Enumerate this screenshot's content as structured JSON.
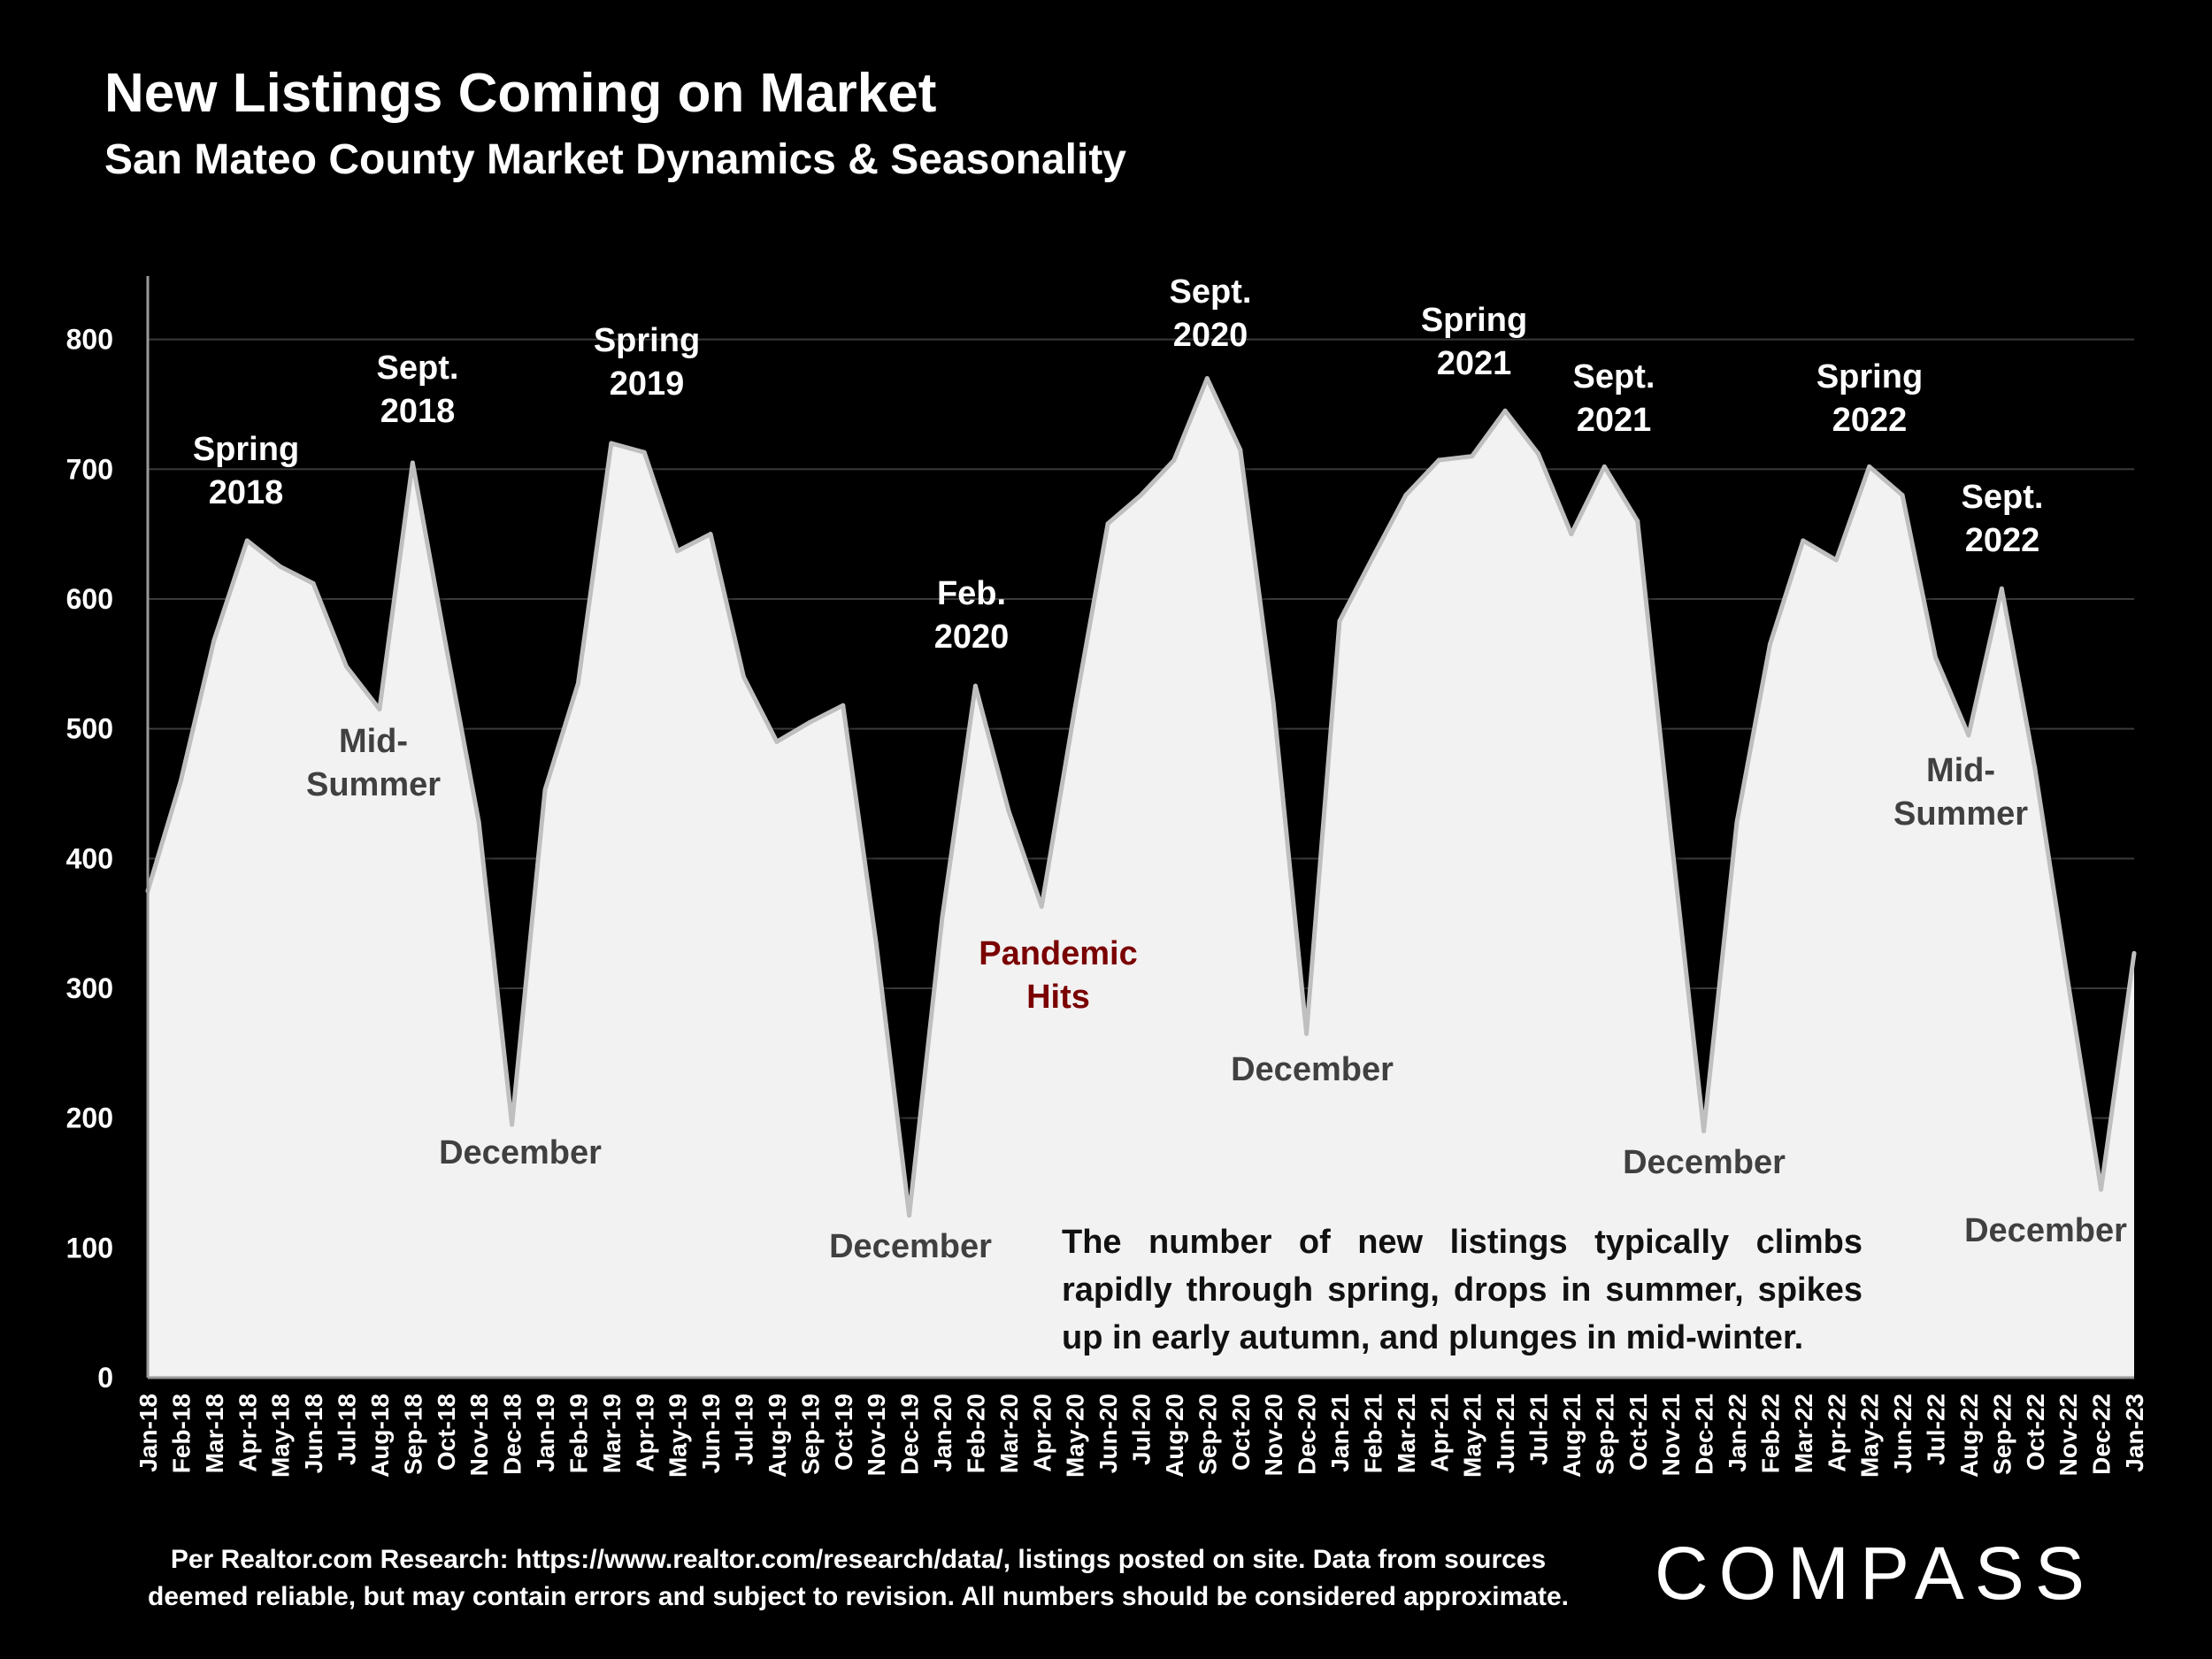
{
  "title": "New Listings Coming on Market",
  "subtitle": "San Mateo County Market Dynamics & Seasonality",
  "note": "The number of new listings typically climbs rapidly through spring, drops in summer, spikes up in early autumn, and plunges in mid-winter.",
  "source_line1": "Per Realtor.com Research:  https://www.realtor.com/research/data/, listings posted on site. Data from sources",
  "source_line2": "deemed reliable, but may contain errors and subject to revision. All numbers should be considered approximate.",
  "logo": "COMPASS",
  "colors": {
    "background": "#000000",
    "area_fill": "#f2f2f2",
    "line": "#bfbfbf",
    "annotation_gray": "#404040",
    "pandemic_red": "#7a0000"
  },
  "chart_data": {
    "type": "area",
    "title": "New Listings Coming on Market",
    "subtitle": "San Mateo County Market Dynamics & Seasonality",
    "xlabel": "",
    "ylabel": "",
    "ylim": [
      0,
      850
    ],
    "yticks": [
      0,
      100,
      200,
      300,
      400,
      500,
      600,
      700,
      800
    ],
    "grid": true,
    "categories": [
      "Jan-18",
      "Feb-18",
      "Mar-18",
      "Apr-18",
      "May-18",
      "Jun-18",
      "Jul-18",
      "Aug-18",
      "Sep-18",
      "Oct-18",
      "Nov-18",
      "Dec-18",
      "Jan-19",
      "Feb-19",
      "Mar-19",
      "Apr-19",
      "May-19",
      "Jun-19",
      "Jul-19",
      "Aug-19",
      "Sep-19",
      "Oct-19",
      "Nov-19",
      "Dec-19",
      "Jan-20",
      "Feb-20",
      "Mar-20",
      "Apr-20",
      "May-20",
      "Jun-20",
      "Jul-20",
      "Aug-20",
      "Sep-20",
      "Oct-20",
      "Nov-20",
      "Dec-20",
      "Jan-21",
      "Feb-21",
      "Mar-21",
      "Apr-21",
      "May-21",
      "Jun-21",
      "Jul-21",
      "Aug-21",
      "Sep-21",
      "Oct-21",
      "Nov-21",
      "Dec-21",
      "Jan-22",
      "Feb-22",
      "Mar-22",
      "Apr-22",
      "May-22",
      "Jun-22",
      "Jul-22",
      "Aug-22",
      "Sep-22",
      "Oct-22",
      "Nov-22",
      "Dec-22",
      "Jan-23"
    ],
    "values": [
      375,
      460,
      568,
      645,
      625,
      612,
      548,
      515,
      705,
      565,
      428,
      195,
      453,
      535,
      720,
      713,
      637,
      650,
      540,
      490,
      505,
      518,
      335,
      125,
      355,
      533,
      437,
      363,
      515,
      658,
      680,
      707,
      770,
      715,
      520,
      265,
      583,
      632,
      680,
      707,
      710,
      745,
      712,
      650,
      702,
      660,
      420,
      190,
      428,
      565,
      645,
      630,
      702,
      680,
      555,
      495,
      608,
      470,
      305,
      145,
      327
    ],
    "annotations": [
      {
        "text": [
          "Spring",
          "2018"
        ],
        "color": "white",
        "x": "Apr-18",
        "y": 645
      },
      {
        "text": [
          "Sept.",
          "2018"
        ],
        "color": "white",
        "x": "Sep-18",
        "y": 705
      },
      {
        "text": [
          "Mid-",
          "Summer"
        ],
        "color": "gray",
        "x": "Aug-18",
        "y": 515
      },
      {
        "text": [
          "December"
        ],
        "color": "gray",
        "x": "Dec-18",
        "y": 195
      },
      {
        "text": [
          "Spring",
          "2019"
        ],
        "color": "white",
        "x": "Mar-19",
        "y": 720
      },
      {
        "text": [
          "December"
        ],
        "color": "gray",
        "x": "Dec-19",
        "y": 125
      },
      {
        "text": [
          "Feb.",
          "2020"
        ],
        "color": "white",
        "x": "Feb-20",
        "y": 533
      },
      {
        "text": [
          "Pandemic",
          "Hits"
        ],
        "color": "red",
        "x": "Apr-20",
        "y": 363
      },
      {
        "text": [
          "Sept.",
          "2020"
        ],
        "color": "white",
        "x": "Sep-20",
        "y": 770
      },
      {
        "text": [
          "December"
        ],
        "color": "gray",
        "x": "Dec-20",
        "y": 265
      },
      {
        "text": [
          "Spring",
          "2021"
        ],
        "color": "white",
        "x": "Jun-21",
        "y": 745
      },
      {
        "text": [
          "Sept.",
          "2021"
        ],
        "color": "white",
        "x": "Sep-21",
        "y": 702
      },
      {
        "text": [
          "December"
        ],
        "color": "gray",
        "x": "Dec-21",
        "y": 190
      },
      {
        "text": [
          "Spring",
          "2022"
        ],
        "color": "white",
        "x": "May-22",
        "y": 702
      },
      {
        "text": [
          "Mid-",
          "Summer"
        ],
        "color": "gray",
        "x": "Aug-22",
        "y": 495
      },
      {
        "text": [
          "Sept.",
          "2022"
        ],
        "color": "white",
        "x": "Sep-22",
        "y": 608
      },
      {
        "text": [
          "December"
        ],
        "color": "gray",
        "x": "Dec-22",
        "y": 145
      }
    ]
  }
}
